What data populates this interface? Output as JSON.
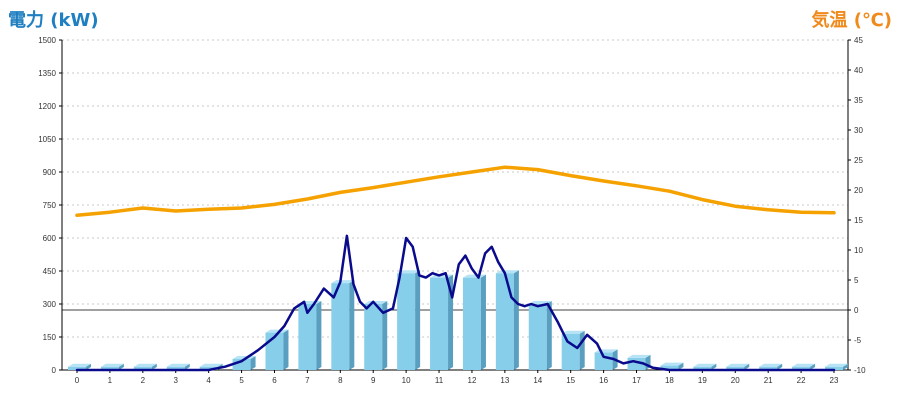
{
  "chart_data": {
    "type": "bar+line",
    "title": "",
    "left_axis": {
      "label": "電力 (kW)",
      "ticks": [
        0,
        150,
        300,
        450,
        600,
        750,
        900,
        1050,
        1200,
        1350,
        1500
      ],
      "ylim": [
        0,
        1500
      ]
    },
    "right_axis": {
      "label": "気温 (℃)",
      "ticks": [
        -10,
        -5,
        0,
        5,
        10,
        15,
        20,
        25,
        30,
        35,
        40,
        45
      ],
      "ylim": [
        -10,
        45
      ]
    },
    "categories": [
      "0",
      "1",
      "2",
      "3",
      "4",
      "5",
      "6",
      "7",
      "8",
      "9",
      "10",
      "11",
      "12",
      "13",
      "14",
      "15",
      "16",
      "17",
      "18",
      "19",
      "20",
      "21",
      "22",
      "23"
    ],
    "series": [
      {
        "kind": "bar",
        "axis": "left",
        "color": "#87ceeb",
        "values": [
          15,
          15,
          15,
          15,
          15,
          50,
          170,
          300,
          395,
          300,
          440,
          420,
          420,
          440,
          300,
          165,
          80,
          55,
          20,
          15,
          15,
          15,
          15,
          15
        ]
      },
      {
        "kind": "line",
        "axis": "left",
        "color": "#0a0a8c",
        "x": [
          0,
          1,
          2,
          3,
          4,
          4.5,
          5,
          5.5,
          6,
          6.3,
          6.6,
          6.9,
          7.0,
          7.2,
          7.5,
          7.8,
          8.0,
          8.2,
          8.4,
          8.6,
          8.8,
          9.0,
          9.3,
          9.6,
          9.8,
          10.0,
          10.2,
          10.4,
          10.6,
          10.8,
          11.0,
          11.2,
          11.4,
          11.6,
          11.8,
          12.0,
          12.2,
          12.4,
          12.6,
          12.8,
          13.0,
          13.2,
          13.4,
          13.6,
          13.8,
          14.0,
          14.3,
          14.6,
          14.9,
          15.2,
          15.5,
          15.8,
          16.0,
          16.3,
          16.6,
          16.9,
          17.2,
          17.5,
          18,
          19,
          20,
          21,
          22,
          23
        ],
        "values": [
          0,
          0,
          0,
          0,
          0,
          15,
          40,
          90,
          150,
          200,
          280,
          310,
          260,
          300,
          370,
          330,
          400,
          610,
          390,
          310,
          280,
          310,
          260,
          280,
          420,
          600,
          560,
          430,
          420,
          440,
          430,
          440,
          330,
          480,
          520,
          460,
          420,
          530,
          560,
          490,
          440,
          330,
          300,
          290,
          300,
          290,
          300,
          220,
          130,
          100,
          160,
          120,
          60,
          50,
          30,
          40,
          30,
          10,
          0,
          0,
          0,
          0,
          0,
          0
        ]
      },
      {
        "kind": "line",
        "axis": "right",
        "color": "#f5a100",
        "values": [
          15.8,
          16.3,
          17.0,
          16.5,
          16.8,
          17.0,
          17.6,
          18.5,
          19.6,
          20.4,
          21.3,
          22.2,
          23.0,
          23.8,
          23.4,
          22.4,
          21.5,
          20.7,
          19.8,
          18.4,
          17.3,
          16.7,
          16.3,
          16.2
        ]
      }
    ],
    "reference_line": {
      "axis": "right",
      "value": 0
    },
    "grid": true,
    "legend": "none"
  }
}
